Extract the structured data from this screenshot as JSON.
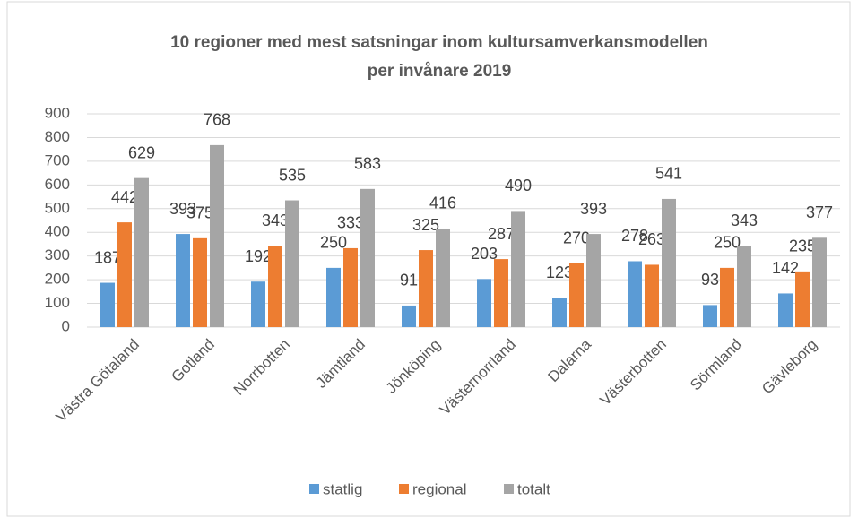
{
  "chart_data": {
    "type": "bar",
    "title": [
      "10 regioner med mest satsningar inom kultursamverkansmodellen",
      "per invånare 2019"
    ],
    "categories": [
      "Västra Götaland",
      "Gotland",
      "Norrbotten",
      "Jämtland",
      "Jönköping",
      "Västernorrland",
      "Dalarna",
      "Västerbotten",
      "Sörmland",
      "Gävleborg"
    ],
    "series": [
      {
        "name": "statlig",
        "color": "#5b9bd5",
        "values": [
          187,
          393,
          192,
          250,
          91,
          203,
          123,
          278,
          93,
          142
        ]
      },
      {
        "name": "regional",
        "color": "#ed7d31",
        "values": [
          442,
          375,
          343,
          333,
          325,
          287,
          270,
          263,
          250,
          235
        ]
      },
      {
        "name": "totalt",
        "color": "#a5a5a5",
        "values": [
          629,
          768,
          535,
          583,
          416,
          490,
          393,
          541,
          343,
          377
        ]
      }
    ],
    "ylim": [
      0,
      900
    ],
    "yticks": [
      0,
      100,
      200,
      300,
      400,
      500,
      600,
      700,
      800,
      900
    ],
    "grid": true,
    "legend": "bottom"
  }
}
